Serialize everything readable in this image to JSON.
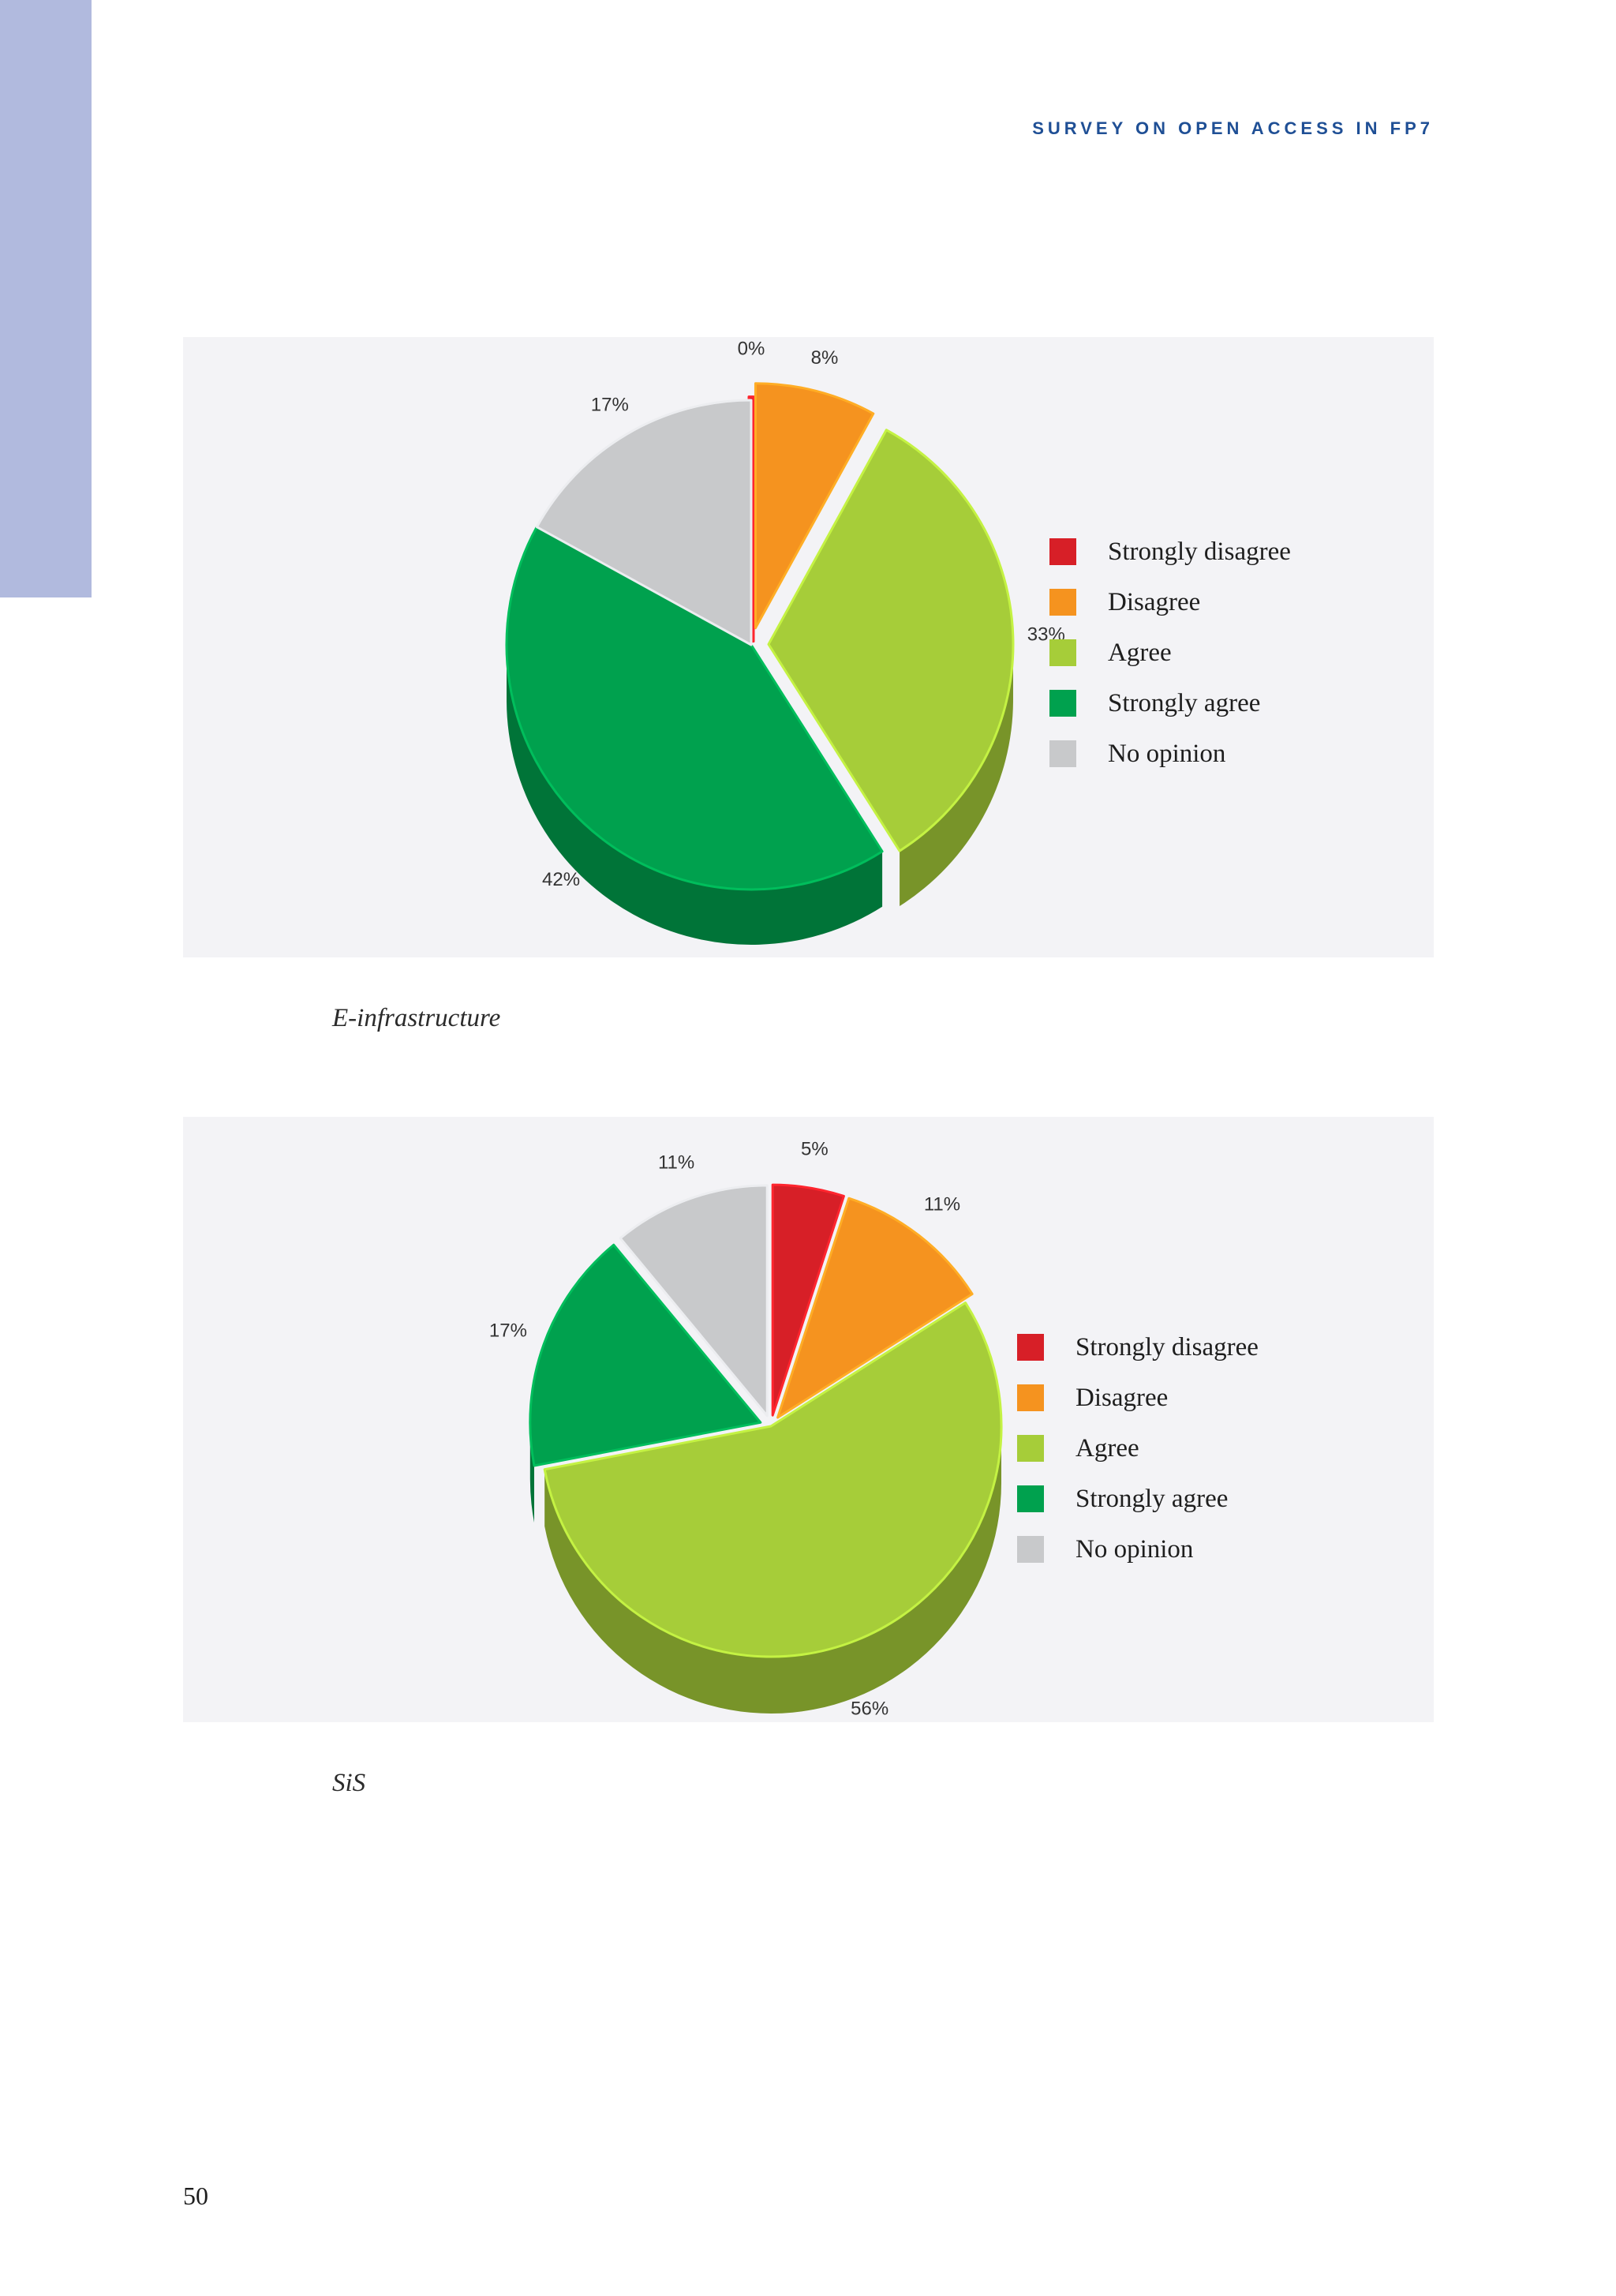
{
  "header": {
    "running_title": "SURVEY ON OPEN ACCESS IN FP7"
  },
  "colors": {
    "side_tab": "#b1bade",
    "header_text": "#1f4f95",
    "panel_background": "#f3f3f6",
    "strongly_disagree": "#d71f27",
    "disagree": "#f5931f",
    "agree": "#a6cd39",
    "strongly_agree": "#00a14e",
    "no_opinion": "#c8c9cb"
  },
  "chart_data": [
    {
      "type": "pie",
      "title": "",
      "caption": "E-infrastructure",
      "legend_position": "right",
      "categories": [
        "Strongly disagree",
        "Disagree",
        "Agree",
        "Strongly agree",
        "No opinion"
      ],
      "values": [
        0,
        8,
        33,
        42,
        17
      ],
      "value_labels": [
        "0%",
        "8%",
        "33%",
        "42%",
        "17%"
      ],
      "colors": [
        "#d71f27",
        "#f5931f",
        "#a6cd39",
        "#00a14e",
        "#c8c9cb"
      ],
      "exploded": [
        true,
        true,
        true,
        false,
        false
      ]
    },
    {
      "type": "pie",
      "title": "",
      "caption": "SiS",
      "legend_position": "right",
      "categories": [
        "Strongly disagree",
        "Disagree",
        "Agree",
        "Strongly agree",
        "No opinion"
      ],
      "values": [
        5,
        11,
        56,
        17,
        11
      ],
      "value_labels": [
        "5%",
        "11%",
        "56%",
        "17%",
        "11%"
      ],
      "colors": [
        "#d71f27",
        "#f5931f",
        "#a6cd39",
        "#00a14e",
        "#c8c9cb"
      ],
      "exploded": [
        true,
        true,
        false,
        true,
        true
      ]
    }
  ],
  "page": {
    "number": "50"
  }
}
